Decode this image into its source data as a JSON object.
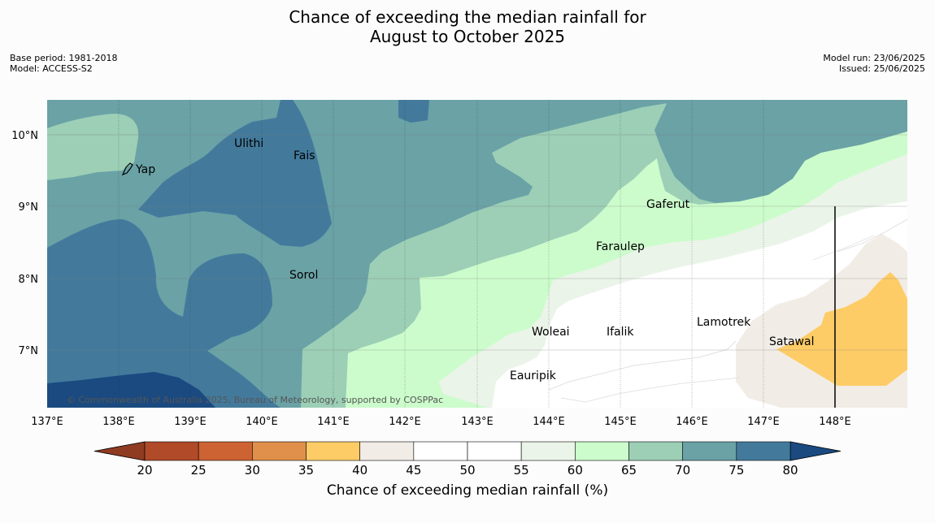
{
  "title": {
    "line1": "Chance of exceeding the median rainfall for",
    "line2": "August to October 2025"
  },
  "meta": {
    "base_period": "Base period: 1981-2018",
    "model": "Model: ACCESS-S2",
    "model_run": "Model run: 23/06/2025",
    "issued": "Issued: 25/06/2025"
  },
  "copyright": "© Commonwealth of Australia 2025, Bureau of Meteorology, supported by COSPPac",
  "lon_labels": [
    "137°E",
    "138°E",
    "139°E",
    "140°E",
    "141°E",
    "142°E",
    "143°E",
    "144°E",
    "145°E",
    "146°E",
    "147°E",
    "148°E"
  ],
  "lat_labels": [
    "10°N",
    "9°N",
    "8°N",
    "7°N"
  ],
  "places": [
    "Ulithi",
    "Fais",
    "Yap",
    "Gaferut",
    "Faraulep",
    "Sorol",
    "Woleai",
    "Ifalik",
    "Lamotrek",
    "Satawal",
    "Eauripik"
  ],
  "colorbar": {
    "label": "Chance of exceeding median rainfall (%)",
    "ticks": [
      "20",
      "25",
      "30",
      "35",
      "40",
      "45",
      "50",
      "55",
      "60",
      "65",
      "70",
      "75",
      "80"
    ],
    "colors": [
      "#b04a28",
      "#cd6232",
      "#e0904a",
      "#fecc66",
      "#f1ece6",
      "#ffffff",
      "#ffffff",
      "#ebf4e9",
      "#ccfccc",
      "#9ccfb6",
      "#6aa2a6",
      "#437a9c"
    ],
    "under_color": "#8f3b22",
    "over_color": "#1a4a80"
  },
  "legend_colors": {
    "c80": "#1a4a80",
    "c75": "#437a9c",
    "c70": "#6aa2a6",
    "c65": "#9ccfb6",
    "c60": "#ccfccc",
    "c55": "#ebf4e9",
    "c45": "#ffffff",
    "c40": "#f1ece6",
    "c35": "#fecc66"
  }
}
